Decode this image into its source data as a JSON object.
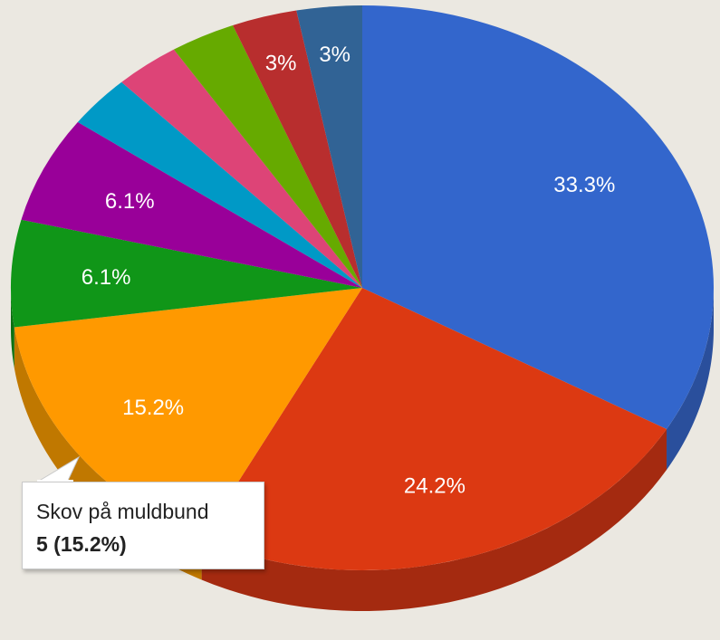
{
  "chart_data": {
    "type": "pie",
    "style": "3d",
    "legend": "none",
    "slices": [
      {
        "label": "33.3%",
        "value": 33.3,
        "color": "#3366cc",
        "side": "#2a4f9c"
      },
      {
        "label": "24.2%",
        "value": 24.2,
        "color": "#dc3912",
        "side": "#a42a10"
      },
      {
        "label": "15.2%",
        "value": 15.2,
        "color": "#ff9900",
        "side": "#c07800"
      },
      {
        "label": "6.1%",
        "value": 6.1,
        "color": "#109618",
        "side": "#0c7012"
      },
      {
        "label": "6.1%",
        "value": 6.1,
        "color": "#990099",
        "side": "#720072"
      },
      {
        "label": "",
        "value": 3.0,
        "color": "#0099c6",
        "side": "#007395"
      },
      {
        "label": "",
        "value": 3.0,
        "color": "#dd4477",
        "side": "#a63359"
      },
      {
        "label": "",
        "value": 3.0,
        "color": "#66aa00",
        "side": "#4c8000"
      },
      {
        "label": "3%",
        "value": 3.0,
        "color": "#b82e2e",
        "side": "#8a2222"
      },
      {
        "label": "3%",
        "value": 3.0,
        "color": "#316395",
        "side": "#254a70"
      }
    ],
    "tooltip": {
      "slice_index": 2,
      "name": "Skov på muldbund",
      "value_text": "5 (15.2%)"
    }
  }
}
